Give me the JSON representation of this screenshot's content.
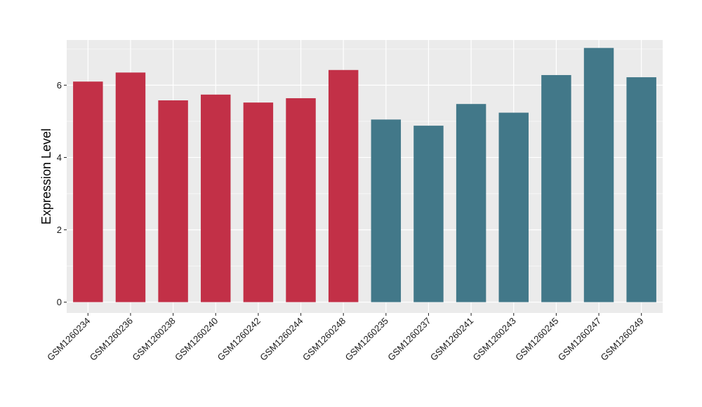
{
  "chart_data": {
    "type": "bar",
    "title": "",
    "xlabel": "",
    "ylabel": "Expression Level",
    "ylim": [
      -0.3,
      7.25
    ],
    "yticks": [
      0,
      2,
      4,
      6
    ],
    "grid": true,
    "legend": "none",
    "categories": [
      "GSM1260234",
      "GSM1260236",
      "GSM1260238",
      "GSM1260240",
      "GSM1260242",
      "GSM1260244",
      "GSM1260248",
      "GSM1260235",
      "GSM1260237",
      "GSM1260241",
      "GSM1260243",
      "GSM1260245",
      "GSM1260247",
      "GSM1260249"
    ],
    "values": [
      6.1,
      6.35,
      5.58,
      5.74,
      5.52,
      5.64,
      6.42,
      5.05,
      4.88,
      5.48,
      5.24,
      6.28,
      7.03,
      6.22
    ],
    "bar_colors": [
      "#c23047",
      "#c23047",
      "#c23047",
      "#c23047",
      "#c23047",
      "#c23047",
      "#c23047",
      "#427889",
      "#427889",
      "#427889",
      "#427889",
      "#427889",
      "#427889",
      "#427889"
    ],
    "panel_background": "#ebebeb",
    "grid_color": "#ffffff"
  }
}
